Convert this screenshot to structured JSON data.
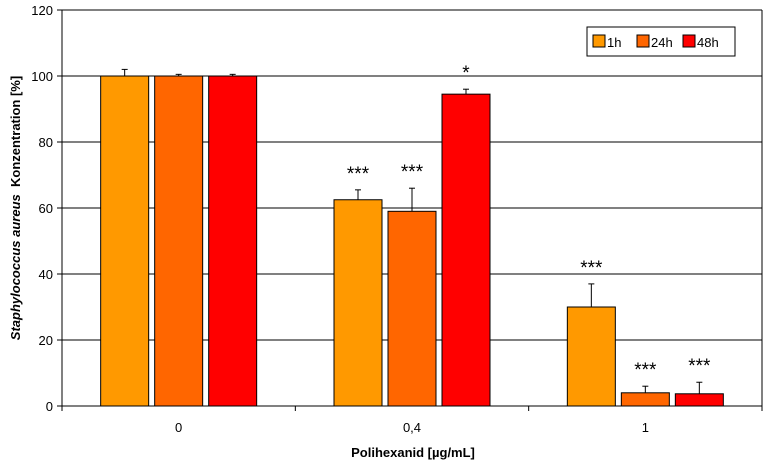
{
  "chart_data": {
    "type": "bar",
    "title": "",
    "xlabel": "Polihexanid [µg/mL]",
    "ylabel_italic": "Staphylococcus aureus",
    "ylabel_rest": "Konzentration [%]",
    "ylim": [
      0,
      120
    ],
    "yticks": [
      0,
      20,
      40,
      60,
      80,
      100,
      120
    ],
    "grid": true,
    "legend_position": "top-right",
    "categories": [
      "0",
      "0,4",
      "1"
    ],
    "series": [
      {
        "name": "1h",
        "color": "#FF9900",
        "values": [
          100,
          62.5,
          30
        ],
        "errors": [
          2.0,
          3.0,
          7.0
        ],
        "annotations": [
          "",
          "***",
          "***"
        ]
      },
      {
        "name": "24h",
        "color": "#FF6600",
        "values": [
          100,
          59,
          4
        ],
        "errors": [
          0.5,
          7.0,
          2.0
        ],
        "annotations": [
          "",
          "***",
          "***"
        ]
      },
      {
        "name": "48h",
        "color": "#FF0000",
        "values": [
          100,
          94.5,
          3.7
        ],
        "errors": [
          0.5,
          1.5,
          3.5
        ],
        "annotations": [
          "",
          "*",
          "***"
        ]
      }
    ]
  }
}
